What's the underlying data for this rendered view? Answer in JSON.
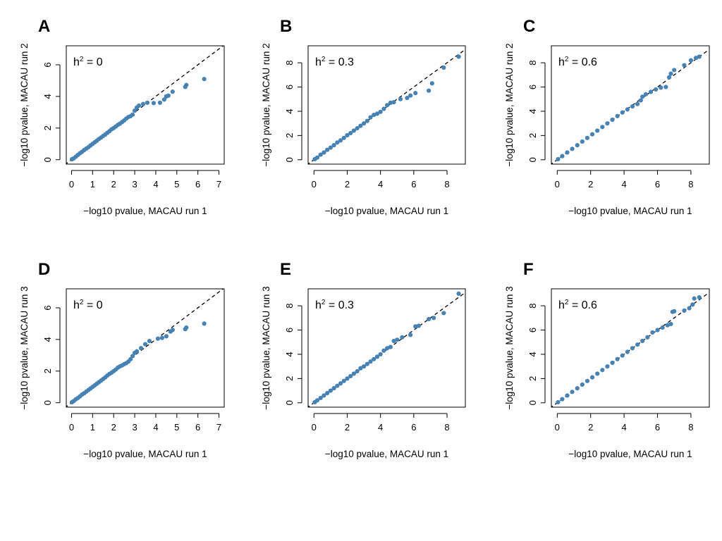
{
  "colors": {
    "points": "#4682b4",
    "diagonal": "#000000",
    "frame": "#000000"
  },
  "chart_data": [
    {
      "type": "scatter",
      "panel": "A",
      "annotation_prefix": "h",
      "annotation_sup": "2",
      "annotation_value": " = 0",
      "xlabel": "−log10 pvalue, MACAU run 1",
      "ylabel": "−log10 pvalue, MACAU run 2",
      "xlim": [
        0,
        7
      ],
      "ylim": [
        0,
        7
      ],
      "xticks": [
        0,
        1,
        2,
        3,
        4,
        5,
        6,
        7
      ],
      "yticks": [
        0,
        2,
        4,
        6
      ],
      "reference_line": "y = x (dashed)",
      "points": [
        [
          0.02,
          0.03
        ],
        [
          0.1,
          0.08
        ],
        [
          0.2,
          0.19
        ],
        [
          0.3,
          0.3
        ],
        [
          0.4,
          0.41
        ],
        [
          0.5,
          0.5
        ],
        [
          0.6,
          0.61
        ],
        [
          0.7,
          0.7
        ],
        [
          0.8,
          0.79
        ],
        [
          0.9,
          0.9
        ],
        [
          1.0,
          1.0
        ],
        [
          1.1,
          1.1
        ],
        [
          1.2,
          1.2
        ],
        [
          1.3,
          1.31
        ],
        [
          1.4,
          1.4
        ],
        [
          1.5,
          1.5
        ],
        [
          1.6,
          1.59
        ],
        [
          1.7,
          1.7
        ],
        [
          1.8,
          1.8
        ],
        [
          1.9,
          1.92
        ],
        [
          2.0,
          2.0
        ],
        [
          2.1,
          2.1
        ],
        [
          2.2,
          2.2
        ],
        [
          2.3,
          2.28
        ],
        [
          2.4,
          2.38
        ],
        [
          2.5,
          2.48
        ],
        [
          2.6,
          2.6
        ],
        [
          2.7,
          2.7
        ],
        [
          2.8,
          2.75
        ],
        [
          2.9,
          2.85
        ],
        [
          3.0,
          3.1
        ],
        [
          3.1,
          3.3
        ],
        [
          3.2,
          3.42
        ],
        [
          3.4,
          3.52
        ],
        [
          3.6,
          3.6
        ],
        [
          3.9,
          3.58
        ],
        [
          4.2,
          3.6
        ],
        [
          4.4,
          3.8
        ],
        [
          4.5,
          4.0
        ],
        [
          4.6,
          4.05
        ],
        [
          4.8,
          4.3
        ],
        [
          5.4,
          4.6
        ],
        [
          5.45,
          4.72
        ],
        [
          6.3,
          5.1
        ]
      ]
    },
    {
      "type": "scatter",
      "panel": "B",
      "annotation_prefix": "h",
      "annotation_sup": "2",
      "annotation_value": " = 0.3",
      "xlabel": "−log10 pvalue, MACAU run 1",
      "ylabel": "−log10 pvalue, MACAU run 2",
      "xlim": [
        0,
        9
      ],
      "ylim": [
        0,
        9
      ],
      "xticks": [
        0,
        2,
        4,
        6,
        8
      ],
      "yticks": [
        0,
        2,
        4,
        6,
        8
      ],
      "reference_line": "y = x (dashed)",
      "points": [
        [
          0.05,
          0.05
        ],
        [
          0.2,
          0.18
        ],
        [
          0.4,
          0.42
        ],
        [
          0.6,
          0.6
        ],
        [
          0.8,
          0.82
        ],
        [
          1.0,
          1.0
        ],
        [
          1.2,
          1.2
        ],
        [
          1.4,
          1.42
        ],
        [
          1.6,
          1.6
        ],
        [
          1.8,
          1.8
        ],
        [
          2.0,
          2.02
        ],
        [
          2.2,
          2.2
        ],
        [
          2.4,
          2.4
        ],
        [
          2.6,
          2.6
        ],
        [
          2.8,
          2.8
        ],
        [
          3.0,
          3.0
        ],
        [
          3.2,
          3.2
        ],
        [
          3.4,
          3.5
        ],
        [
          3.6,
          3.7
        ],
        [
          3.8,
          3.8
        ],
        [
          4.0,
          3.95
        ],
        [
          4.2,
          4.2
        ],
        [
          4.4,
          4.5
        ],
        [
          4.6,
          4.7
        ],
        [
          4.8,
          4.75
        ],
        [
          5.2,
          5.0
        ],
        [
          5.6,
          5.1
        ],
        [
          5.8,
          5.3
        ],
        [
          6.1,
          5.5
        ],
        [
          6.9,
          5.7
        ],
        [
          7.1,
          6.3
        ],
        [
          7.8,
          7.6
        ],
        [
          8.7,
          8.5
        ]
      ]
    },
    {
      "type": "scatter",
      "panel": "C",
      "annotation_prefix": "h",
      "annotation_sup": "2",
      "annotation_value": " = 0.6",
      "xlabel": "−log10 pvalue, MACAU run 1",
      "ylabel": "−log10 pvalue, MACAU run 2",
      "xlim": [
        0,
        9
      ],
      "ylim": [
        0,
        9
      ],
      "xticks": [
        0,
        2,
        4,
        6,
        8
      ],
      "yticks": [
        0,
        2,
        4,
        6,
        8
      ],
      "reference_line": "y = x (dashed)",
      "points": [
        [
          0.05,
          0.05
        ],
        [
          0.3,
          0.3
        ],
        [
          0.6,
          0.6
        ],
        [
          0.9,
          0.9
        ],
        [
          1.2,
          1.2
        ],
        [
          1.5,
          1.5
        ],
        [
          1.8,
          1.8
        ],
        [
          2.1,
          2.1
        ],
        [
          2.4,
          2.4
        ],
        [
          2.7,
          2.7
        ],
        [
          3.0,
          3.0
        ],
        [
          3.3,
          3.3
        ],
        [
          3.6,
          3.6
        ],
        [
          3.9,
          3.9
        ],
        [
          4.2,
          4.15
        ],
        [
          4.5,
          4.4
        ],
        [
          4.8,
          4.6
        ],
        [
          5.0,
          4.9
        ],
        [
          5.1,
          5.2
        ],
        [
          5.3,
          5.4
        ],
        [
          5.6,
          5.6
        ],
        [
          5.9,
          5.8
        ],
        [
          6.2,
          5.95
        ],
        [
          6.5,
          6.0
        ],
        [
          6.7,
          6.8
        ],
        [
          6.8,
          7.1
        ],
        [
          7.0,
          7.4
        ],
        [
          7.6,
          7.8
        ],
        [
          8.0,
          8.2
        ],
        [
          8.3,
          8.4
        ],
        [
          8.5,
          8.5
        ]
      ]
    },
    {
      "type": "scatter",
      "panel": "D",
      "annotation_prefix": "h",
      "annotation_sup": "2",
      "annotation_value": " = 0",
      "xlabel": "−log10 pvalue, MACAU run 1",
      "ylabel": "−log10 pvalue, MACAU run 3",
      "xlim": [
        0,
        7
      ],
      "ylim": [
        0,
        7
      ],
      "xticks": [
        0,
        1,
        2,
        3,
        4,
        5,
        6,
        7
      ],
      "yticks": [
        0,
        2,
        4,
        6
      ],
      "reference_line": "y = x (dashed)",
      "points": [
        [
          0.02,
          0.03
        ],
        [
          0.1,
          0.1
        ],
        [
          0.2,
          0.21
        ],
        [
          0.3,
          0.3
        ],
        [
          0.4,
          0.4
        ],
        [
          0.5,
          0.52
        ],
        [
          0.6,
          0.6
        ],
        [
          0.7,
          0.7
        ],
        [
          0.8,
          0.8
        ],
        [
          0.9,
          0.9
        ],
        [
          1.0,
          1.0
        ],
        [
          1.1,
          1.1
        ],
        [
          1.2,
          1.2
        ],
        [
          1.3,
          1.3
        ],
        [
          1.4,
          1.4
        ],
        [
          1.5,
          1.5
        ],
        [
          1.6,
          1.6
        ],
        [
          1.7,
          1.72
        ],
        [
          1.8,
          1.82
        ],
        [
          1.9,
          1.9
        ],
        [
          2.0,
          2.0
        ],
        [
          2.1,
          2.1
        ],
        [
          2.2,
          2.22
        ],
        [
          2.3,
          2.3
        ],
        [
          2.4,
          2.36
        ],
        [
          2.5,
          2.44
        ],
        [
          2.6,
          2.5
        ],
        [
          2.7,
          2.6
        ],
        [
          2.8,
          2.75
        ],
        [
          2.9,
          2.95
        ],
        [
          3.0,
          3.15
        ],
        [
          3.1,
          3.25
        ],
        [
          3.3,
          3.45
        ],
        [
          3.5,
          3.7
        ],
        [
          3.7,
          3.9
        ],
        [
          4.1,
          4.05
        ],
        [
          4.3,
          4.1
        ],
        [
          4.5,
          4.2
        ],
        [
          4.7,
          4.5
        ],
        [
          4.8,
          4.6
        ],
        [
          5.4,
          4.65
        ],
        [
          5.45,
          4.75
        ],
        [
          6.3,
          5.0
        ]
      ]
    },
    {
      "type": "scatter",
      "panel": "E",
      "annotation_prefix": "h",
      "annotation_sup": "2",
      "annotation_value": " = 0.3",
      "xlabel": "−log10 pvalue, MACAU run 1",
      "ylabel": "−log10 pvalue, MACAU run 3",
      "xlim": [
        0,
        9
      ],
      "ylim": [
        0,
        9
      ],
      "xticks": [
        0,
        2,
        4,
        6,
        8
      ],
      "yticks": [
        0,
        2,
        4,
        6,
        8
      ],
      "reference_line": "y = x (dashed)",
      "points": [
        [
          0.05,
          0.05
        ],
        [
          0.2,
          0.2
        ],
        [
          0.4,
          0.4
        ],
        [
          0.6,
          0.6
        ],
        [
          0.8,
          0.8
        ],
        [
          1.0,
          1.0
        ],
        [
          1.2,
          1.2
        ],
        [
          1.4,
          1.4
        ],
        [
          1.6,
          1.6
        ],
        [
          1.8,
          1.8
        ],
        [
          2.0,
          2.0
        ],
        [
          2.2,
          2.2
        ],
        [
          2.4,
          2.4
        ],
        [
          2.6,
          2.6
        ],
        [
          2.8,
          2.85
        ],
        [
          3.0,
          3.0
        ],
        [
          3.2,
          3.2
        ],
        [
          3.4,
          3.4
        ],
        [
          3.6,
          3.6
        ],
        [
          3.8,
          3.8
        ],
        [
          4.0,
          4.0
        ],
        [
          4.2,
          4.3
        ],
        [
          4.4,
          4.5
        ],
        [
          4.6,
          4.6
        ],
        [
          4.8,
          5.1
        ],
        [
          5.0,
          5.2
        ],
        [
          5.3,
          5.4
        ],
        [
          5.8,
          5.6
        ],
        [
          6.1,
          6.3
        ],
        [
          6.3,
          6.35
        ],
        [
          6.9,
          6.9
        ],
        [
          7.2,
          7.0
        ],
        [
          7.8,
          7.4
        ],
        [
          8.7,
          9.0
        ]
      ]
    },
    {
      "type": "scatter",
      "panel": "F",
      "annotation_prefix": "h",
      "annotation_sup": "2",
      "annotation_value": " = 0.6",
      "xlabel": "−log10 pvalue, MACAU run 1",
      "ylabel": "−log10 pvalue, MACAU run 3",
      "xlim": [
        0,
        9
      ],
      "ylim": [
        0,
        9
      ],
      "xticks": [
        0,
        2,
        4,
        6,
        8
      ],
      "yticks": [
        0,
        2,
        4,
        6,
        8
      ],
      "reference_line": "y = x (dashed)",
      "points": [
        [
          0.05,
          0.05
        ],
        [
          0.3,
          0.3
        ],
        [
          0.6,
          0.6
        ],
        [
          0.9,
          0.9
        ],
        [
          1.2,
          1.2
        ],
        [
          1.5,
          1.5
        ],
        [
          1.8,
          1.8
        ],
        [
          2.1,
          2.1
        ],
        [
          2.4,
          2.4
        ],
        [
          2.7,
          2.7
        ],
        [
          3.0,
          3.0
        ],
        [
          3.3,
          3.3
        ],
        [
          3.6,
          3.6
        ],
        [
          3.9,
          3.9
        ],
        [
          4.2,
          4.2
        ],
        [
          4.5,
          4.5
        ],
        [
          4.8,
          4.8
        ],
        [
          5.1,
          5.1
        ],
        [
          5.4,
          5.4
        ],
        [
          5.7,
          5.8
        ],
        [
          6.0,
          6.0
        ],
        [
          6.3,
          6.2
        ],
        [
          6.6,
          6.4
        ],
        [
          6.8,
          6.5
        ],
        [
          6.9,
          7.5
        ],
        [
          7.0,
          7.55
        ],
        [
          7.6,
          7.6
        ],
        [
          7.9,
          7.8
        ],
        [
          8.1,
          8.1
        ],
        [
          8.2,
          8.6
        ],
        [
          8.5,
          8.7
        ]
      ]
    }
  ]
}
